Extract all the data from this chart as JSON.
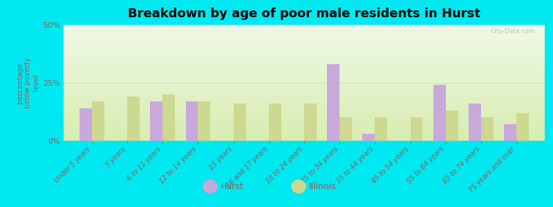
{
  "title": "Breakdown by age of poor male residents in Hurst",
  "ylabel": "percentage\nbelow poverty\nlevel",
  "categories": [
    "Under 5 years",
    "5 years",
    "6 to 11 years",
    "12 to 14 years",
    "15 years",
    "16 and 17 years",
    "18 to 24 years",
    "25 to 34 years",
    "35 to 44 years",
    "45 to 54 years",
    "55 to 64 years",
    "65 to 74 years",
    "75 years and over"
  ],
  "hurst_values": [
    14,
    0,
    17,
    17,
    0,
    0,
    0,
    33,
    3,
    0,
    24,
    16,
    7
  ],
  "illinois_values": [
    17,
    19,
    20,
    17,
    16,
    16,
    16,
    10,
    10,
    10,
    13,
    10,
    12
  ],
  "hurst_color": "#c9a8dc",
  "illinois_color": "#cdd890",
  "bg_top": "#f0f8e8",
  "bg_bottom": "#d8edb0",
  "outer_bg": "#00e8f0",
  "ylim": [
    0,
    50
  ],
  "yticks": [
    0,
    25,
    50
  ],
  "ytick_labels": [
    "0%",
    "25%",
    "50%"
  ],
  "bar_width": 0.35,
  "title_fontsize": 13,
  "label_fontsize": 7.5,
  "tick_fontsize": 7,
  "text_color": "#8B6060",
  "watermark": "City-Data.com"
}
